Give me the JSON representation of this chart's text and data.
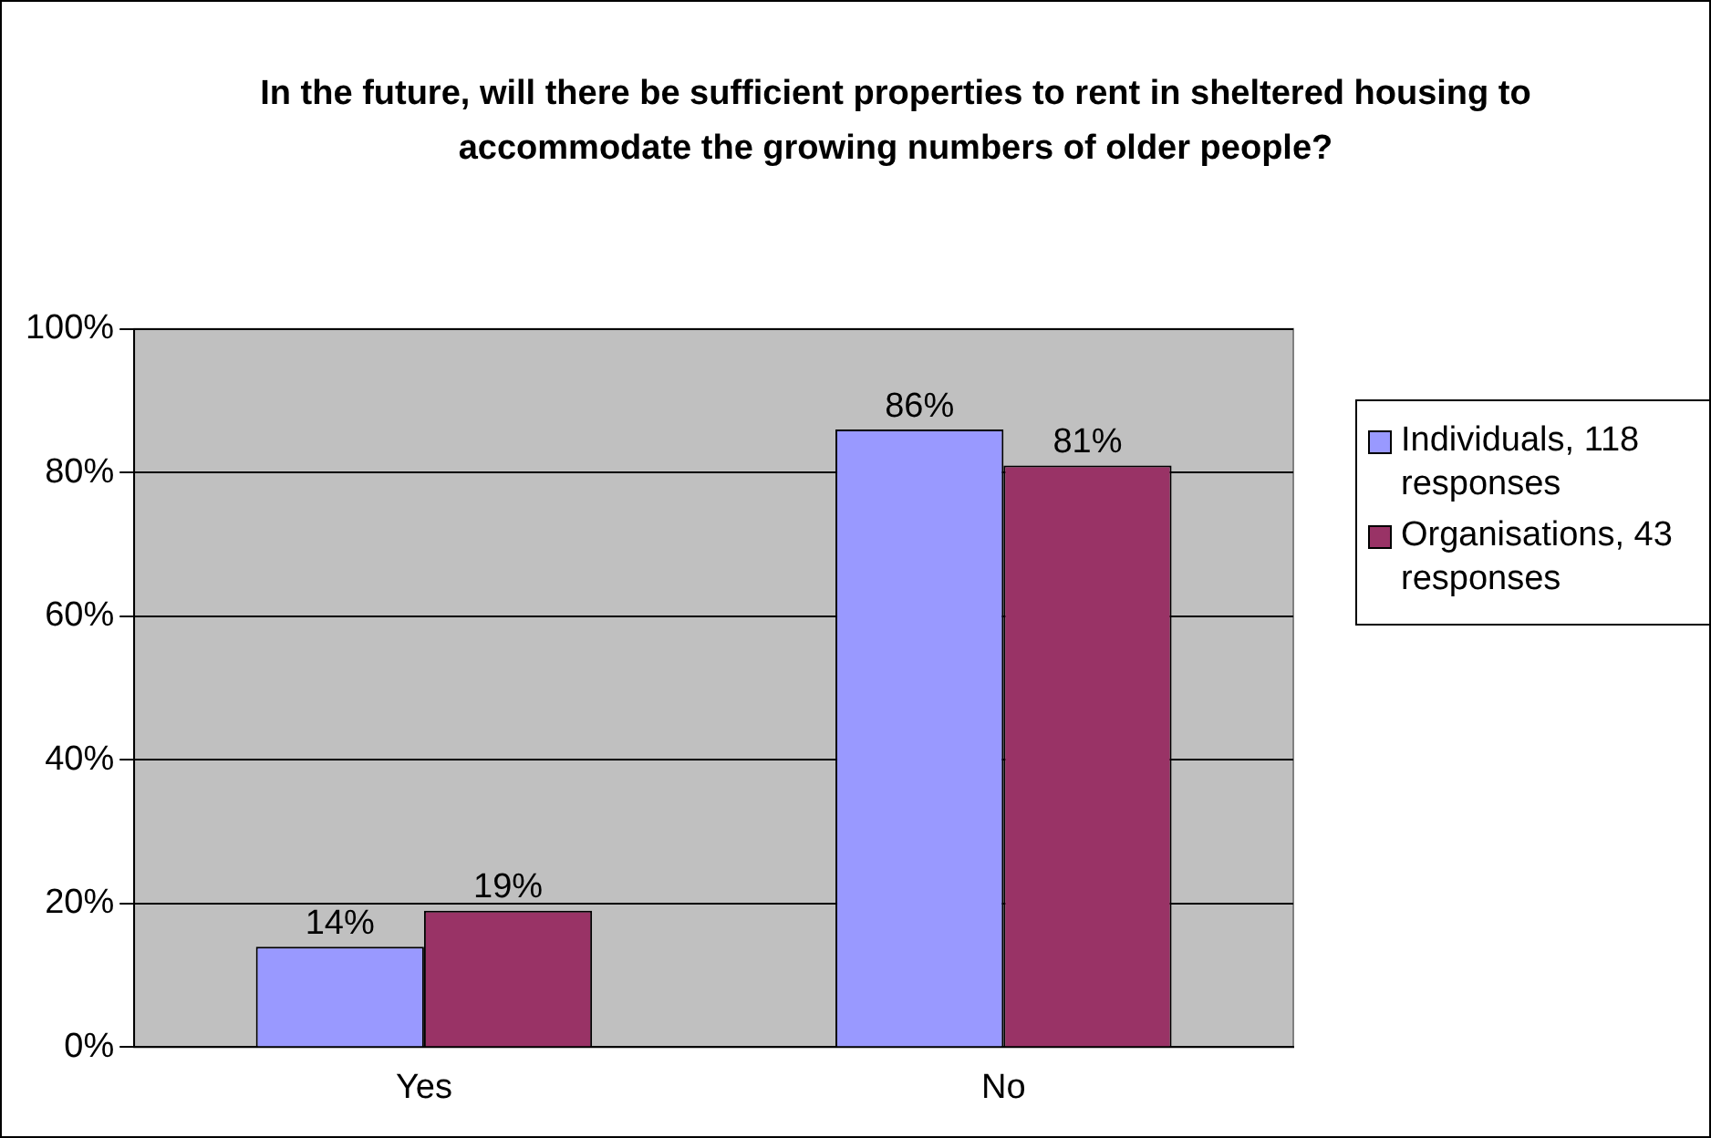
{
  "chart_data": {
    "type": "bar",
    "title": "In the future, will there be sufficient properties to rent in sheltered housing to accommodate the growing numbers of older people?",
    "categories": [
      "Yes",
      "No"
    ],
    "series": [
      {
        "name": "Individuals, 118 responses",
        "color": "#9999ff",
        "values": [
          14,
          86
        ],
        "value_labels": [
          "14%",
          "86%"
        ]
      },
      {
        "name": "Organisations, 43 responses",
        "color": "#993366",
        "values": [
          19,
          81
        ],
        "value_labels": [
          "19%",
          "81%"
        ]
      }
    ],
    "ylim": [
      0,
      100
    ],
    "yticks": [
      {
        "value": 0,
        "label": "0%"
      },
      {
        "value": 20,
        "label": "20%"
      },
      {
        "value": 40,
        "label": "40%"
      },
      {
        "value": 60,
        "label": "60%"
      },
      {
        "value": 80,
        "label": "80%"
      },
      {
        "value": 100,
        "label": "100%"
      }
    ],
    "grid": "y",
    "legend": "right"
  }
}
